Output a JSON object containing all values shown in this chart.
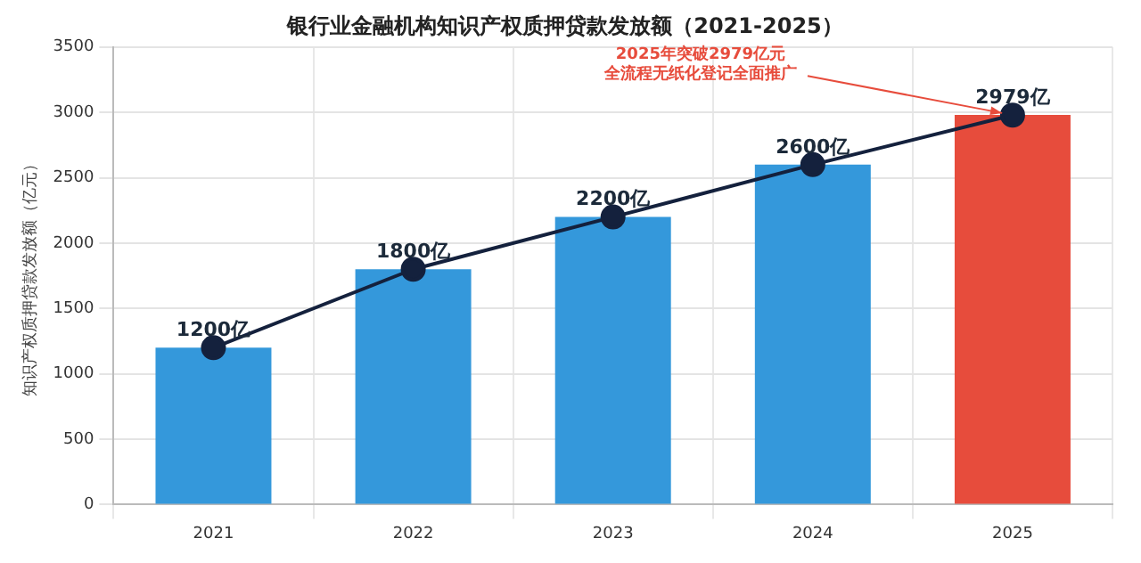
{
  "chart_data": {
    "type": "bar",
    "title": "银行业金融机构知识产权质押贷款发放额（2021-2025）",
    "ylabel": "知识产权质押贷款发放额（亿元）",
    "categories": [
      "2021",
      "2022",
      "2023",
      "2024",
      "2025"
    ],
    "series": [
      {
        "colors": [
          "#3498db",
          "#3498db",
          "#3498db",
          "#3498db",
          "#e74c3c"
        ],
        "values": [
          1200,
          1800,
          2200,
          2600,
          2980
        ]
      },
      {
        "type": "line",
        "color": "#14213d",
        "values": [
          1200,
          1800,
          2200,
          2600,
          2979
        ],
        "value_labels": [
          "1200亿",
          "1800亿",
          "2200亿",
          "2600亿",
          "2979亿"
        ],
        "marker": "circle"
      }
    ],
    "annotations": [
      "2025年突破2979亿元",
      {
        "text": "全流程无纸化登记全面推广",
        "x": "2025",
        "y": 2979
      }
    ],
    "ylim": [
      0,
      3500
    ],
    "yticks": [
      0,
      500,
      1000,
      1500,
      2000,
      2500,
      3000,
      3500
    ],
    "grid": true,
    "legend": false
  }
}
